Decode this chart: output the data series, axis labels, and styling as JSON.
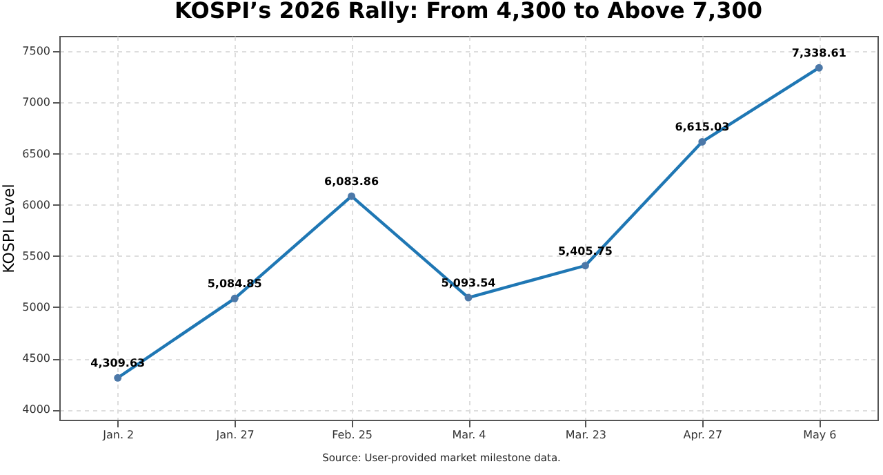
{
  "chart_data": {
    "type": "line",
    "title": "KOSPI’s 2026 Rally: From 4,300 to Above 7,300",
    "ylabel": "KOSPI Level",
    "categories": [
      "Jan. 2",
      "Jan. 27",
      "Feb. 25",
      "Mar. 4",
      "Mar. 23",
      "Apr. 27",
      "May 6"
    ],
    "series": [
      {
        "color": "#1f77b4",
        "values": [
          4309.63,
          5084.85,
          6083.86,
          5093.54,
          5405.75,
          6615.03,
          7338.61
        ],
        "value_labels": [
          "4,309.63",
          "5,084.85",
          "6,083.86",
          "5,093.54",
          "5,405.75",
          "6,615.03",
          "7,338.61"
        ]
      }
    ],
    "ylim": [
      3900,
      7650
    ],
    "yticks": [
      4000,
      4500,
      5000,
      5500,
      6000,
      6500,
      7000,
      7500
    ],
    "grid": true,
    "marker": "circle",
    "line_style": "solid",
    "annotations": [
      "Source: User-provided market milestone data."
    ]
  }
}
